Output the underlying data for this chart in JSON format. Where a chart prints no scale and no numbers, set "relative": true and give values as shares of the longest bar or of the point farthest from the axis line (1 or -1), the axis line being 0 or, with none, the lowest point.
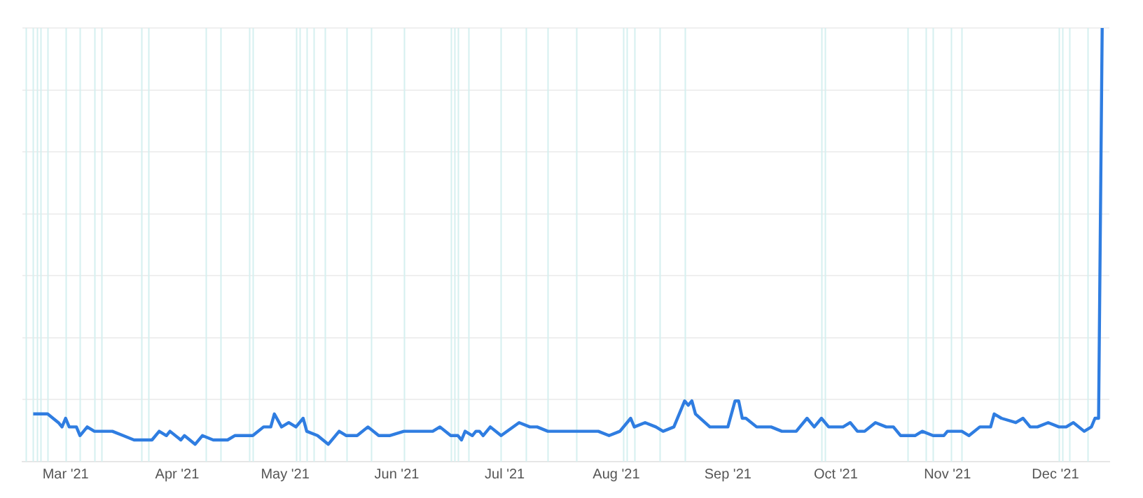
{
  "chart_data": {
    "type": "line",
    "relative": true,
    "grid": "y",
    "legend": false,
    "marker": "none",
    "line_style": "solid",
    "xlim": [
      "2021-02-17",
      "2021-12-16"
    ],
    "xticks": [
      {
        "value": "2021-03-01",
        "label": "Mar '21"
      },
      {
        "value": "2021-04-01",
        "label": "Apr '21"
      },
      {
        "value": "2021-05-01",
        "label": "May '21"
      },
      {
        "value": "2021-06-01",
        "label": "Jun '21"
      },
      {
        "value": "2021-07-01",
        "label": "Jul '21"
      },
      {
        "value": "2021-08-01",
        "label": "Aug '21"
      },
      {
        "value": "2021-09-01",
        "label": "Sep '21"
      },
      {
        "value": "2021-10-01",
        "label": "Oct '21"
      },
      {
        "value": "2021-11-01",
        "label": "Nov '21"
      },
      {
        "value": "2021-12-01",
        "label": "Dec '21"
      }
    ],
    "x": [
      "2021-02-20",
      "2021-02-22",
      "2021-02-23",
      "2021-02-24",
      "2021-02-27",
      "2021-02-28",
      "2021-03-01",
      "2021-03-02",
      "2021-03-04",
      "2021-03-05",
      "2021-03-07",
      "2021-03-09",
      "2021-03-13",
      "2021-03-14",
      "2021-03-17",
      "2021-03-20",
      "2021-03-22",
      "2021-03-25",
      "2021-03-27",
      "2021-03-29",
      "2021-03-30",
      "2021-04-02",
      "2021-04-03",
      "2021-04-06",
      "2021-04-08",
      "2021-04-11",
      "2021-04-15",
      "2021-04-17",
      "2021-04-20",
      "2021-04-22",
      "2021-04-25",
      "2021-04-27",
      "2021-04-28",
      "2021-04-30",
      "2021-05-02",
      "2021-05-04",
      "2021-05-06",
      "2021-05-07",
      "2021-05-10",
      "2021-05-13",
      "2021-05-16",
      "2021-05-18",
      "2021-05-21",
      "2021-05-24",
      "2021-05-27",
      "2021-05-30",
      "2021-06-03",
      "2021-06-07",
      "2021-06-11",
      "2021-06-13",
      "2021-06-16",
      "2021-06-18",
      "2021-06-19",
      "2021-06-20",
      "2021-06-22",
      "2021-06-23",
      "2021-06-24",
      "2021-06-25",
      "2021-06-27",
      "2021-06-30",
      "2021-07-05",
      "2021-07-08",
      "2021-07-10",
      "2021-07-13",
      "2021-07-16",
      "2021-07-18",
      "2021-07-23",
      "2021-07-27",
      "2021-07-30",
      "2021-08-02",
      "2021-08-05",
      "2021-08-06",
      "2021-08-09",
      "2021-08-12",
      "2021-08-14",
      "2021-08-17",
      "2021-08-20",
      "2021-08-21",
      "2021-08-22",
      "2021-08-23",
      "2021-08-27",
      "2021-08-30",
      "2021-09-01",
      "2021-09-03",
      "2021-09-04",
      "2021-09-05",
      "2021-09-06",
      "2021-09-09",
      "2021-09-11",
      "2021-09-13",
      "2021-09-16",
      "2021-09-20",
      "2021-09-23",
      "2021-09-25",
      "2021-09-27",
      "2021-09-29",
      "2021-10-03",
      "2021-10-05",
      "2021-10-07",
      "2021-10-09",
      "2021-10-12",
      "2021-10-15",
      "2021-10-17",
      "2021-10-19",
      "2021-10-23",
      "2021-10-25",
      "2021-10-28",
      "2021-10-31",
      "2021-11-01",
      "2021-11-05",
      "2021-11-07",
      "2021-11-10",
      "2021-11-13",
      "2021-11-14",
      "2021-11-16",
      "2021-11-20",
      "2021-11-22",
      "2021-11-24",
      "2021-11-26",
      "2021-11-29",
      "2021-12-02",
      "2021-12-04",
      "2021-12-06",
      "2021-12-09",
      "2021-12-11",
      "2021-12-12",
      "2021-12-13",
      "2021-12-14"
    ],
    "series": [
      {
        "color": "#2f7de1",
        "values": [
          0.11,
          0.11,
          0.11,
          0.11,
          0.09,
          0.08,
          0.1,
          0.08,
          0.08,
          0.06,
          0.08,
          0.07,
          0.07,
          0.07,
          0.06,
          0.05,
          0.05,
          0.05,
          0.07,
          0.06,
          0.07,
          0.05,
          0.06,
          0.04,
          0.06,
          0.05,
          0.05,
          0.06,
          0.06,
          0.06,
          0.08,
          0.08,
          0.11,
          0.08,
          0.09,
          0.08,
          0.1,
          0.07,
          0.06,
          0.04,
          0.07,
          0.06,
          0.06,
          0.08,
          0.06,
          0.06,
          0.07,
          0.07,
          0.07,
          0.08,
          0.06,
          0.06,
          0.05,
          0.07,
          0.06,
          0.07,
          0.07,
          0.06,
          0.08,
          0.06,
          0.09,
          0.08,
          0.08,
          0.07,
          0.07,
          0.07,
          0.07,
          0.07,
          0.06,
          0.07,
          0.1,
          0.08,
          0.09,
          0.08,
          0.07,
          0.08,
          0.14,
          0.13,
          0.14,
          0.11,
          0.08,
          0.08,
          0.08,
          0.14,
          0.14,
          0.1,
          0.1,
          0.08,
          0.08,
          0.08,
          0.07,
          0.07,
          0.1,
          0.08,
          0.1,
          0.08,
          0.08,
          0.09,
          0.07,
          0.07,
          0.09,
          0.08,
          0.08,
          0.06,
          0.06,
          0.07,
          0.06,
          0.06,
          0.07,
          0.07,
          0.06,
          0.08,
          0.08,
          0.11,
          0.1,
          0.09,
          0.1,
          0.08,
          0.08,
          0.09,
          0.08,
          0.08,
          0.09,
          0.07,
          0.08,
          0.1,
          0.1,
          1
        ]
      }
    ],
    "ref_lines": [
      {
        "axis": "x",
        "value": "2021-02-18",
        "color": "#d5f0f0"
      },
      {
        "axis": "x",
        "value": "2021-02-20",
        "color": "#d5f0f0"
      },
      {
        "axis": "x",
        "value": "2021-02-21",
        "color": "#d5f0f0"
      },
      {
        "axis": "x",
        "value": "2021-02-22",
        "color": "#d5f0f0"
      },
      {
        "axis": "x",
        "value": "2021-02-24",
        "color": "#d5f0f0"
      },
      {
        "axis": "x",
        "value": "2021-03-01",
        "color": "#d5f0f0"
      },
      {
        "axis": "x",
        "value": "2021-03-05",
        "color": "#d5f0f0"
      },
      {
        "axis": "x",
        "value": "2021-03-09",
        "color": "#d5f0f0"
      },
      {
        "axis": "x",
        "value": "2021-03-11",
        "color": "#d5f0f0"
      },
      {
        "axis": "x",
        "value": "2021-03-22",
        "color": "#d5f0f0"
      },
      {
        "axis": "x",
        "value": "2021-03-24",
        "color": "#d5f0f0"
      },
      {
        "axis": "x",
        "value": "2021-04-09",
        "color": "#d5f0f0"
      },
      {
        "axis": "x",
        "value": "2021-04-13",
        "color": "#d5f0f0"
      },
      {
        "axis": "x",
        "value": "2021-04-21",
        "color": "#d5f0f0"
      },
      {
        "axis": "x",
        "value": "2021-04-22",
        "color": "#d5f0f0"
      },
      {
        "axis": "x",
        "value": "2021-05-04",
        "color": "#d5f0f0"
      },
      {
        "axis": "x",
        "value": "2021-05-05",
        "color": "#d5f0f0"
      },
      {
        "axis": "x",
        "value": "2021-05-07",
        "color": "#d5f0f0"
      },
      {
        "axis": "x",
        "value": "2021-05-09",
        "color": "#d5f0f0"
      },
      {
        "axis": "x",
        "value": "2021-05-12",
        "color": "#d5f0f0"
      },
      {
        "axis": "x",
        "value": "2021-05-18",
        "color": "#d5f0f0"
      },
      {
        "axis": "x",
        "value": "2021-05-25",
        "color": "#d5f0f0"
      },
      {
        "axis": "x",
        "value": "2021-06-03",
        "color": "#d5f0f0"
      },
      {
        "axis": "x",
        "value": "2021-06-16",
        "color": "#d5f0f0"
      },
      {
        "axis": "x",
        "value": "2021-06-17",
        "color": "#d5f0f0"
      },
      {
        "axis": "x",
        "value": "2021-06-18",
        "color": "#d5f0f0"
      },
      {
        "axis": "x",
        "value": "2021-06-21",
        "color": "#d5f0f0"
      },
      {
        "axis": "x",
        "value": "2021-06-30",
        "color": "#d5f0f0"
      },
      {
        "axis": "x",
        "value": "2021-07-07",
        "color": "#d5f0f0"
      },
      {
        "axis": "x",
        "value": "2021-07-13",
        "color": "#d5f0f0"
      },
      {
        "axis": "x",
        "value": "2021-07-21",
        "color": "#d5f0f0"
      },
      {
        "axis": "x",
        "value": "2021-08-03",
        "color": "#d5f0f0"
      },
      {
        "axis": "x",
        "value": "2021-08-04",
        "color": "#d5f0f0"
      },
      {
        "axis": "x",
        "value": "2021-08-06",
        "color": "#d5f0f0"
      },
      {
        "axis": "x",
        "value": "2021-08-13",
        "color": "#d5f0f0"
      },
      {
        "axis": "x",
        "value": "2021-08-20",
        "color": "#d5f0f0"
      },
      {
        "axis": "x",
        "value": "2021-09-27",
        "color": "#d5f0f0"
      },
      {
        "axis": "x",
        "value": "2021-09-28",
        "color": "#d5f0f0"
      },
      {
        "axis": "x",
        "value": "2021-10-21",
        "color": "#d5f0f0"
      },
      {
        "axis": "x",
        "value": "2021-10-26",
        "color": "#d5f0f0"
      },
      {
        "axis": "x",
        "value": "2021-10-28",
        "color": "#d5f0f0"
      },
      {
        "axis": "x",
        "value": "2021-11-02",
        "color": "#d5f0f0"
      },
      {
        "axis": "x",
        "value": "2021-11-05",
        "color": "#d5f0f0"
      },
      {
        "axis": "x",
        "value": "2021-12-02",
        "color": "#d5f0f0"
      },
      {
        "axis": "x",
        "value": "2021-12-03",
        "color": "#d5f0f0"
      },
      {
        "axis": "x",
        "value": "2021-12-05",
        "color": "#d5f0f0"
      },
      {
        "axis": "x",
        "value": "2021-12-10",
        "color": "#d5f0f0"
      }
    ]
  }
}
